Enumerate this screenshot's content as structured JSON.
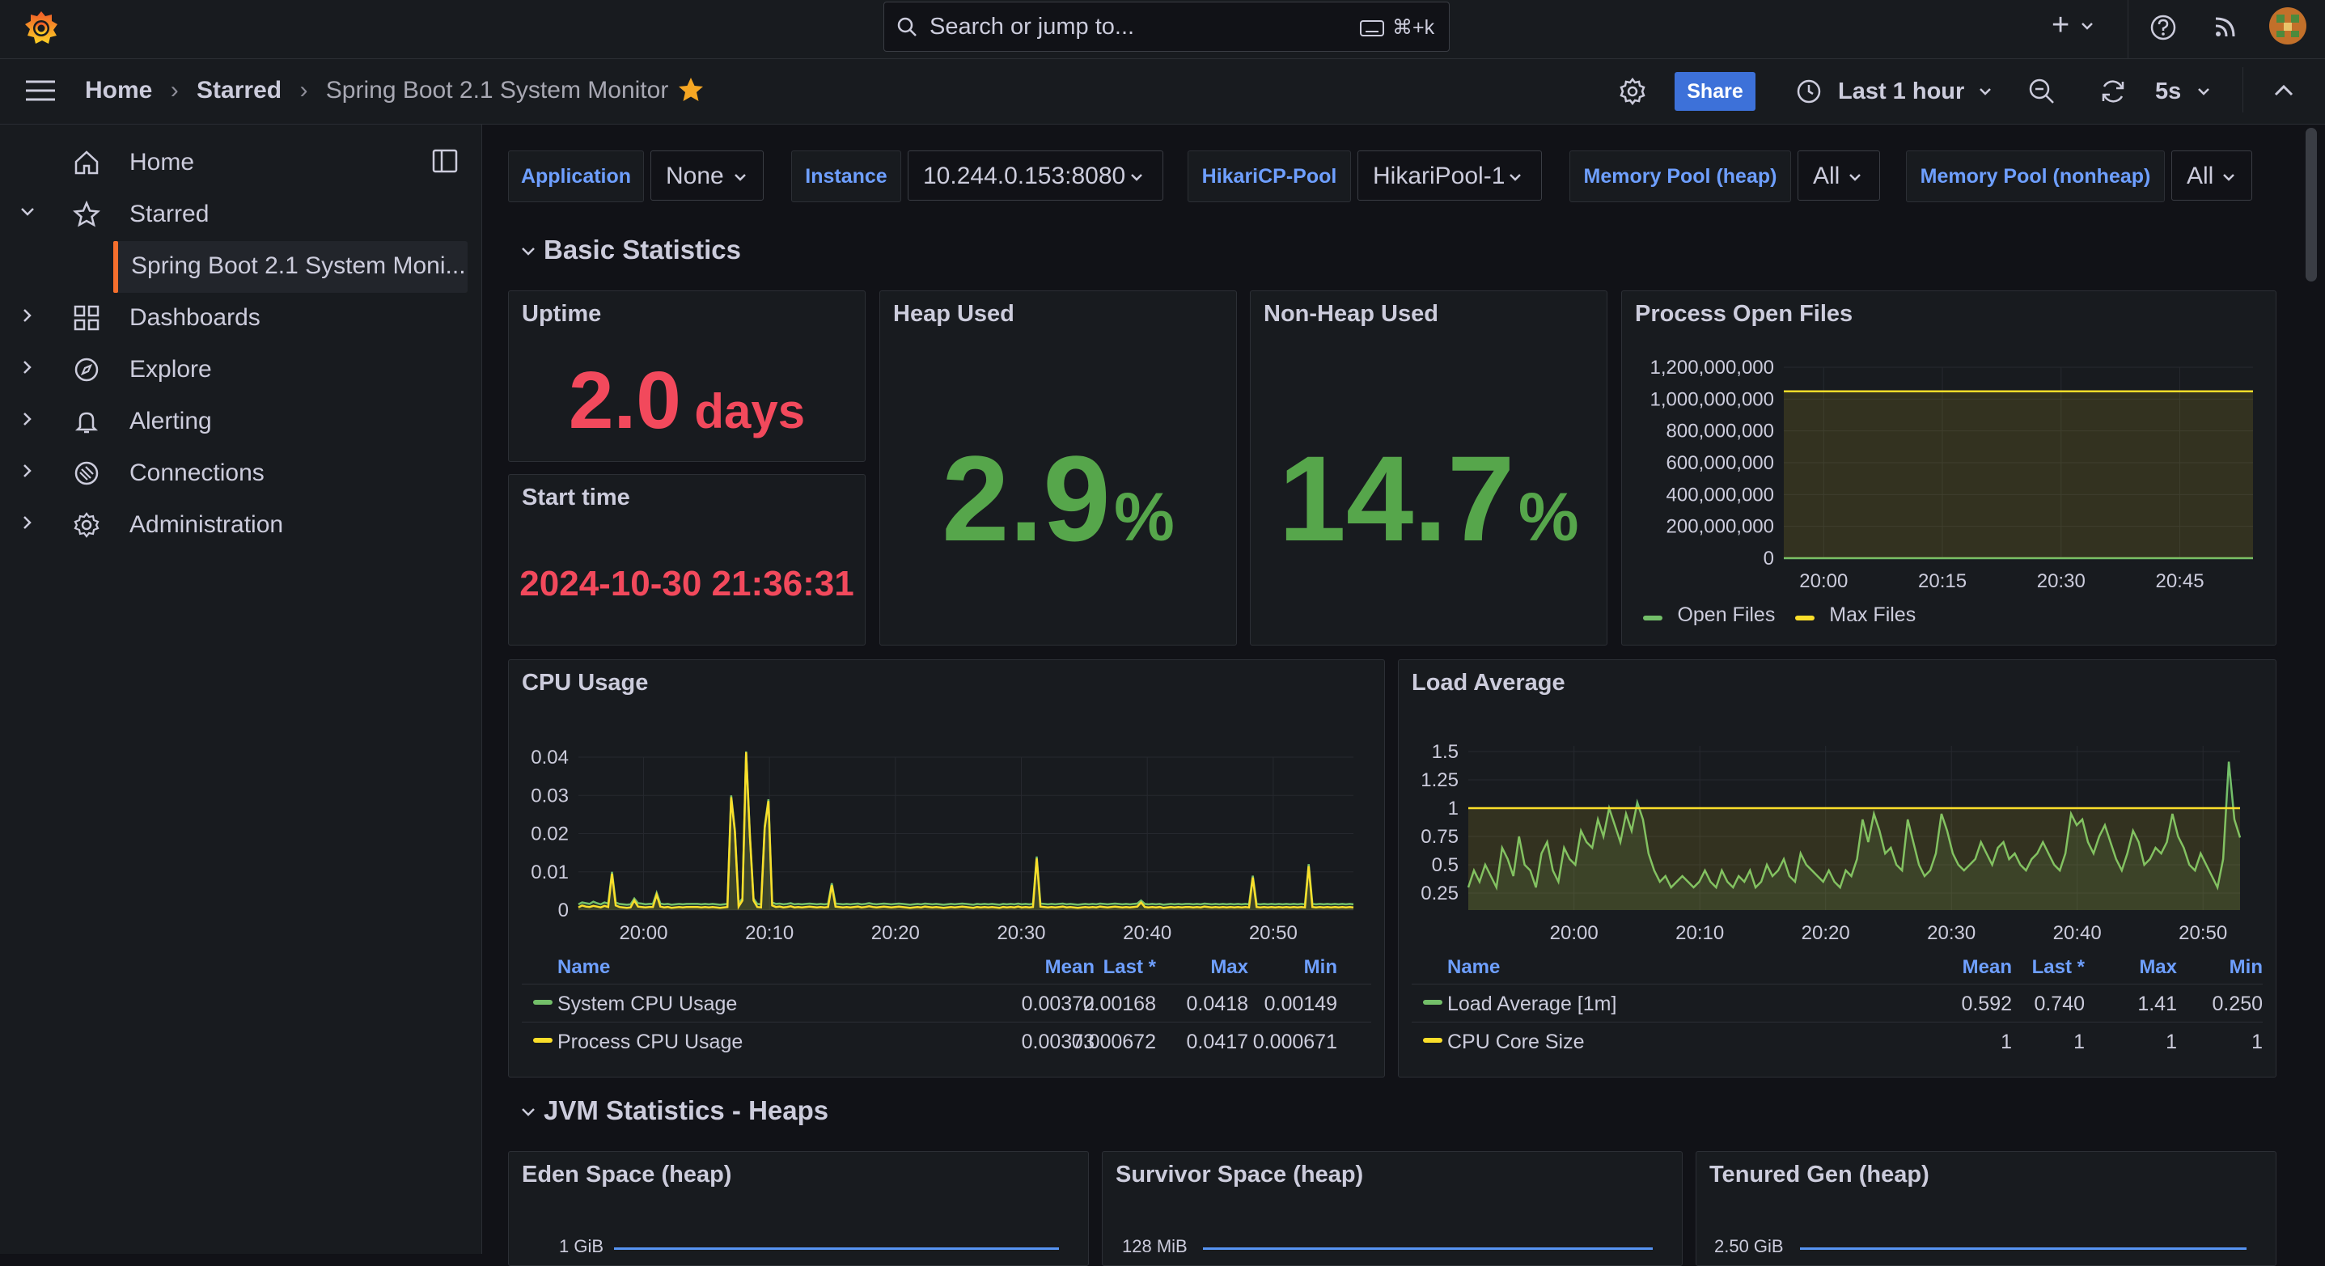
{
  "topbar": {
    "search_placeholder": "Search or jump to...",
    "search_shortcut": "⌘+k",
    "add_label": "+"
  },
  "breadcrumb": {
    "home": "Home",
    "starred": "Starred",
    "dashboard": "Spring Boot 2.1 System Monitor"
  },
  "toolbar": {
    "share": "Share",
    "time_range": "Last 1 hour",
    "refresh_interval": "5s"
  },
  "sidebar": {
    "items": [
      {
        "label": "Home",
        "icon": "home-icon"
      },
      {
        "label": "Starred",
        "icon": "star-icon"
      },
      {
        "label": "Spring Boot 2.1 System Moni...",
        "icon": ""
      },
      {
        "label": "Dashboards",
        "icon": "apps-icon"
      },
      {
        "label": "Explore",
        "icon": "compass-icon"
      },
      {
        "label": "Alerting",
        "icon": "bell-icon"
      },
      {
        "label": "Connections",
        "icon": "plug-icon"
      },
      {
        "label": "Administration",
        "icon": "cog-icon"
      }
    ]
  },
  "variables": [
    {
      "label": "Application",
      "value": "None"
    },
    {
      "label": "Instance",
      "value": "10.244.0.153:8080"
    },
    {
      "label": "HikariCP-Pool",
      "value": "HikariPool-1"
    },
    {
      "label": "Memory Pool (heap)",
      "value": "All"
    },
    {
      "label": "Memory Pool (nonheap)",
      "value": "All"
    }
  ],
  "rows": {
    "basic": "Basic Statistics",
    "jvm_heaps": "JVM Statistics - Heaps"
  },
  "stats": {
    "uptime": {
      "title": "Uptime",
      "value": "2.0",
      "unit": "days",
      "color": "#f2495c"
    },
    "start_time": {
      "title": "Start time",
      "value": "2024-10-30 21:36:31",
      "color": "#f2495c"
    },
    "heap_used": {
      "title": "Heap Used",
      "value": "2.9",
      "unit": "%",
      "color": "#56a64b"
    },
    "nonheap_used": {
      "title": "Non-Heap Used",
      "value": "14.7",
      "unit": "%",
      "color": "#56a64b"
    }
  },
  "legend_headers": {
    "name": "Name",
    "mean": "Mean",
    "last": "Last *",
    "max": "Max",
    "min": "Min"
  },
  "chart_data": [
    {
      "type": "line",
      "title": "Process Open Files",
      "x_ticks": [
        "20:00",
        "20:15",
        "20:30",
        "20:45"
      ],
      "y_ticks": [
        "1,200,000,000",
        "1,000,000,000",
        "800,000,000",
        "600,000,000",
        "400,000,000",
        "200,000,000",
        "0"
      ],
      "ylim": [
        0,
        1200000000
      ],
      "series": [
        {
          "name": "Open Files",
          "color": "#73bf69",
          "values": [
            30,
            30,
            30,
            30,
            30,
            30
          ]
        },
        {
          "name": "Max Files",
          "color": "#fade2a",
          "values": [
            1048576000,
            1048576000,
            1048576000,
            1048576000,
            1048576000,
            1048576000
          ]
        }
      ]
    },
    {
      "type": "line",
      "title": "CPU Usage",
      "x_ticks": [
        "20:00",
        "20:10",
        "20:20",
        "20:30",
        "20:40",
        "20:50"
      ],
      "y_ticks": [
        "0.04",
        "0.03",
        "0.02",
        "0.01",
        "0"
      ],
      "ylim": [
        0,
        0.04
      ],
      "series": [
        {
          "name": "System CPU Usage",
          "color": "#73bf69",
          "mean": "0.00372",
          "last": "0.00168",
          "max": "0.0418",
          "min": "0.00149",
          "values": [
            0.0015,
            0.002,
            0.0018,
            0.0016,
            0.0022,
            0.0018,
            0.0015,
            0.002,
            0.0017,
            0.01,
            0.002,
            0.0016,
            0.0015,
            0.0014,
            0.0015,
            0.003,
            0.0018,
            0.0017,
            0.0015,
            0.0016,
            0.0016,
            0.0045,
            0.0017,
            0.0015,
            0.0016,
            0.0014,
            0.0015,
            0.0016,
            0.0015,
            0.0016,
            0.0016,
            0.0016,
            0.0016,
            0.0015,
            0.0016,
            0.0015,
            0.0016,
            0.0015,
            0.0014,
            0.0015,
            0.0016,
            0.03,
            0.021,
            0.0018,
            0.003,
            0.0415,
            0.02,
            0.003,
            0.0016,
            0.0015,
            0.022,
            0.029,
            0.002,
            0.0016,
            0.0017,
            0.0015,
            0.0016,
            0.0018,
            0.0015,
            0.0016,
            0.0015,
            0.0016,
            0.0017,
            0.0016,
            0.0015,
            0.0016,
            0.0015,
            0.0016,
            0.007,
            0.0017,
            0.0016,
            0.0015,
            0.0016,
            0.0015,
            0.0016,
            0.0017,
            0.0015,
            0.0016,
            0.0018,
            0.0016,
            0.0015,
            0.0016,
            0.0017,
            0.0016,
            0.0015,
            0.0016,
            0.0017,
            0.0016,
            0.0015,
            0.0014,
            0.0015,
            0.0016,
            0.0015,
            0.0017,
            0.0016,
            0.0015,
            0.0016,
            0.0015,
            0.0014,
            0.0015,
            0.0016,
            0.0015,
            0.0016,
            0.0017,
            0.0016,
            0.0015,
            0.0014,
            0.0016,
            0.0015,
            0.0016,
            0.0015,
            0.0016,
            0.0015,
            0.0014,
            0.0016,
            0.0015,
            0.0016,
            0.0015,
            0.0017,
            0.0015,
            0.0016,
            0.0015,
            0.0016,
            0.014,
            0.0017,
            0.0016,
            0.0015,
            0.0016,
            0.0015,
            0.0016,
            0.0017,
            0.0015,
            0.0016,
            0.0015,
            0.0014,
            0.0015,
            0.0016,
            0.0015,
            0.0016,
            0.0015,
            0.0017,
            0.0016,
            0.0015,
            0.0016,
            0.0017,
            0.0016,
            0.0015,
            0.0016,
            0.0015,
            0.0016,
            0.0017,
            0.0025,
            0.0016,
            0.0015,
            0.0016,
            0.0015,
            0.0016,
            0.0014,
            0.0015,
            0.0016,
            0.0015,
            0.0016,
            0.0015,
            0.0016,
            0.0016,
            0.0015,
            0.0016,
            0.0015,
            0.0017,
            0.0016,
            0.0015,
            0.0016,
            0.0015,
            0.0016,
            0.0015,
            0.0016,
            0.0015,
            0.0016,
            0.0015,
            0.0016,
            0.0015,
            0.009,
            0.0016,
            0.0015,
            0.0016,
            0.0015,
            0.0016,
            0.0015,
            0.0016,
            0.0015,
            0.0016,
            0.0015,
            0.0016,
            0.0015,
            0.0016,
            0.0015,
            0.012,
            0.0016,
            0.0015,
            0.0016,
            0.0015,
            0.0016,
            0.0015,
            0.0016,
            0.0015,
            0.0016,
            0.0015,
            0.0016,
            0.0015
          ]
        },
        {
          "name": "Process CPU Usage",
          "color": "#fade2a",
          "mean": "0.00373",
          "last": "0.000672",
          "max": "0.0417",
          "min": "0.000671",
          "values": [
            0.0007,
            0.0012,
            0.0009,
            0.0008,
            0.0011,
            0.0009,
            0.0007,
            0.0011,
            0.0008,
            0.0095,
            0.0012,
            0.0008,
            0.0007,
            0.0006,
            0.0007,
            0.0025,
            0.0009,
            0.0008,
            0.0007,
            0.0008,
            0.0008,
            0.004,
            0.0009,
            0.0007,
            0.0008,
            0.0006,
            0.0007,
            0.0008,
            0.0007,
            0.0008,
            0.0008,
            0.0008,
            0.0008,
            0.0007,
            0.0008,
            0.0007,
            0.0008,
            0.0007,
            0.0006,
            0.0007,
            0.0008,
            0.0295,
            0.0205,
            0.0009,
            0.0025,
            0.0413,
            0.0195,
            0.0025,
            0.0008,
            0.0007,
            0.0215,
            0.0285,
            0.0012,
            0.0008,
            0.0009,
            0.0007,
            0.0008,
            0.001,
            0.0007,
            0.0008,
            0.0007,
            0.0008,
            0.0009,
            0.0008,
            0.0007,
            0.0008,
            0.0007,
            0.0008,
            0.0065,
            0.0009,
            0.0008,
            0.0007,
            0.0008,
            0.0007,
            0.0008,
            0.0009,
            0.0007,
            0.0008,
            0.001,
            0.0008,
            0.0007,
            0.0008,
            0.0009,
            0.0008,
            0.0007,
            0.0008,
            0.0009,
            0.0008,
            0.0007,
            0.0006,
            0.0007,
            0.0008,
            0.0007,
            0.0009,
            0.0008,
            0.0007,
            0.0008,
            0.0007,
            0.0006,
            0.0007,
            0.0008,
            0.0007,
            0.0008,
            0.0009,
            0.0008,
            0.0007,
            0.0006,
            0.0008,
            0.0007,
            0.0008,
            0.0007,
            0.0008,
            0.0007,
            0.0006,
            0.0008,
            0.0007,
            0.0008,
            0.0007,
            0.0009,
            0.0007,
            0.0008,
            0.0007,
            0.0008,
            0.0135,
            0.0009,
            0.0008,
            0.0007,
            0.0008,
            0.0007,
            0.0008,
            0.0009,
            0.0007,
            0.0008,
            0.0007,
            0.0006,
            0.0007,
            0.0008,
            0.0007,
            0.0008,
            0.0007,
            0.0009,
            0.0008,
            0.0007,
            0.0008,
            0.0009,
            0.0008,
            0.0007,
            0.0008,
            0.0007,
            0.0008,
            0.0009,
            0.002,
            0.0008,
            0.0007,
            0.0008,
            0.0007,
            0.0008,
            0.0006,
            0.0007,
            0.0008,
            0.0007,
            0.0008,
            0.0007,
            0.0008,
            0.0008,
            0.0007,
            0.0008,
            0.0007,
            0.0009,
            0.0008,
            0.0007,
            0.0008,
            0.0007,
            0.0008,
            0.0007,
            0.0008,
            0.0007,
            0.0008,
            0.0007,
            0.0008,
            0.0007,
            0.0085,
            0.0008,
            0.0007,
            0.0008,
            0.0007,
            0.0008,
            0.0007,
            0.0008,
            0.0007,
            0.0008,
            0.0007,
            0.0008,
            0.0007,
            0.0008,
            0.0007,
            0.0115,
            0.0008,
            0.0007,
            0.0008,
            0.0007,
            0.0008,
            0.0007,
            0.0008,
            0.0007,
            0.0008,
            0.0007,
            0.0008,
            0.0007
          ]
        }
      ]
    },
    {
      "type": "line",
      "title": "Load Average",
      "x_ticks": [
        "20:00",
        "20:10",
        "20:20",
        "20:30",
        "20:40",
        "20:50"
      ],
      "y_ticks": [
        "1.5",
        "1.25",
        "1",
        "0.75",
        "0.5",
        "0.25"
      ],
      "ylim": [
        0.1,
        1.55
      ],
      "series": [
        {
          "name": "Load Average [1m]",
          "color": "#73bf69",
          "mean": "0.592",
          "last": "0.740",
          "max": "1.41",
          "min": "0.250",
          "values": [
            0.3,
            0.45,
            0.35,
            0.5,
            0.4,
            0.3,
            0.65,
            0.55,
            0.4,
            0.75,
            0.5,
            0.45,
            0.3,
            0.6,
            0.7,
            0.45,
            0.35,
            0.65,
            0.55,
            0.5,
            0.8,
            0.7,
            0.65,
            0.9,
            0.75,
            1.0,
            0.85,
            0.7,
            0.95,
            0.8,
            1.05,
            0.9,
            0.6,
            0.45,
            0.35,
            0.4,
            0.3,
            0.35,
            0.4,
            0.35,
            0.3,
            0.35,
            0.45,
            0.35,
            0.3,
            0.45,
            0.35,
            0.3,
            0.4,
            0.35,
            0.45,
            0.3,
            0.35,
            0.5,
            0.4,
            0.45,
            0.55,
            0.4,
            0.35,
            0.6,
            0.5,
            0.45,
            0.4,
            0.35,
            0.45,
            0.35,
            0.3,
            0.45,
            0.4,
            0.55,
            0.9,
            0.7,
            0.95,
            0.8,
            0.6,
            0.65,
            0.5,
            0.45,
            0.9,
            0.7,
            0.5,
            0.4,
            0.45,
            0.6,
            0.95,
            0.8,
            0.6,
            0.5,
            0.45,
            0.5,
            0.55,
            0.7,
            0.6,
            0.5,
            0.65,
            0.7,
            0.55,
            0.6,
            0.5,
            0.45,
            0.55,
            0.6,
            0.7,
            0.6,
            0.5,
            0.45,
            0.6,
            0.95,
            0.85,
            0.9,
            0.7,
            0.6,
            0.75,
            0.85,
            0.7,
            0.55,
            0.45,
            0.6,
            0.8,
            0.7,
            0.5,
            0.55,
            0.65,
            0.6,
            0.7,
            0.95,
            0.75,
            0.65,
            0.5,
            0.45,
            0.6,
            0.5,
            0.4,
            0.3,
            0.55,
            1.41,
            0.9,
            0.74
          ]
        },
        {
          "name": "CPU Core Size",
          "color": "#fade2a",
          "mean": "1",
          "last": "1",
          "max": "1",
          "min": "1",
          "values": [
            1,
            1,
            1,
            1,
            1,
            1
          ]
        }
      ]
    },
    {
      "type": "line",
      "title": "Eden Space (heap)",
      "y_ticks": [
        "1 GiB"
      ],
      "series": [
        {
          "name": "",
          "color": "#5794f2",
          "values": []
        }
      ]
    },
    {
      "type": "line",
      "title": "Survivor Space (heap)",
      "y_ticks": [
        "128 MiB"
      ],
      "series": [
        {
          "name": "",
          "color": "#5794f2",
          "values": []
        }
      ]
    },
    {
      "type": "line",
      "title": "Tenured Gen (heap)",
      "y_ticks": [
        "2.50 GiB"
      ],
      "series": [
        {
          "name": "",
          "color": "#5794f2",
          "values": []
        }
      ]
    }
  ]
}
